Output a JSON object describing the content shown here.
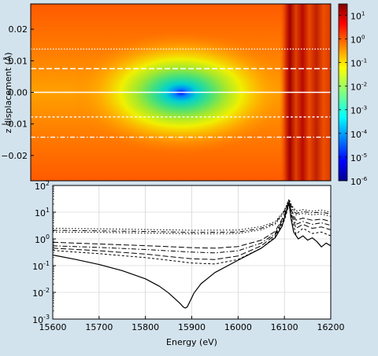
{
  "chart_data": [
    {
      "type": "heatmap",
      "ylabel": "z displacement (Å)",
      "ylim": [
        -0.028,
        0.028
      ],
      "y_ticks": [
        "0.02",
        "0.01",
        "0.00",
        "−0.01",
        "−0.02"
      ],
      "y_tick_values": [
        0.02,
        0.01,
        0.0,
        -0.01,
        -0.02
      ],
      "x_range_eV": [
        15600,
        16200
      ],
      "minimum_location": {
        "energy_eV": 15886,
        "z": 0.0
      },
      "edge_band_eV": [
        16100,
        16125
      ],
      "colorbar": {
        "scale": "log",
        "range": [
          1e-06,
          30
        ],
        "ticks": [
          {
            "mant": "10",
            "exp": "1",
            "value": 10
          },
          {
            "mant": "10",
            "exp": "0",
            "value": 1
          },
          {
            "mant": "10",
            "exp": "-1",
            "value": 0.1
          },
          {
            "mant": "10",
            "exp": "-2",
            "value": 0.01
          },
          {
            "mant": "10",
            "exp": "-3",
            "value": 0.001
          },
          {
            "mant": "10",
            "exp": "-4",
            "value": 0.0001
          },
          {
            "mant": "10",
            "exp": "-5",
            "value": 1e-05
          },
          {
            "mant": "10",
            "exp": "-6",
            "value": 1e-06
          }
        ]
      },
      "slice_lines": [
        {
          "z": 0.0137,
          "dash": "dotted"
        },
        {
          "z": 0.0075,
          "dash": "long-dash"
        },
        {
          "z": 0.0,
          "dash": "solid"
        },
        {
          "z": -0.0078,
          "dash": "short-dash"
        },
        {
          "z": -0.0142,
          "dash": "dash-dot"
        }
      ]
    },
    {
      "type": "line",
      "xlabel": "Energy (eV)",
      "ylabel": "",
      "xlim": [
        15600,
        16200
      ],
      "ylim_log10": [
        -3,
        2
      ],
      "yscale": "log",
      "grid": true,
      "x_ticks": [
        "15600",
        "15700",
        "15800",
        "15900",
        "16000",
        "16100",
        "16200"
      ],
      "y_ticks": [
        {
          "mant": "10",
          "exp": "2"
        },
        {
          "mant": "10",
          "exp": "1"
        },
        {
          "mant": "10",
          "exp": "0"
        },
        {
          "mant": "10",
          "exp": "-1"
        },
        {
          "mant": "10",
          "exp": "-2"
        },
        {
          "mant": "10",
          "exp": "-3"
        }
      ],
      "series": [
        {
          "dash": "solid",
          "x": [
            15600,
            15650,
            15700,
            15750,
            15800,
            15830,
            15850,
            15865,
            15875,
            15882,
            15886,
            15890,
            15896,
            15905,
            15920,
            15950,
            16000,
            16050,
            16080,
            16095,
            16105,
            16110,
            16114,
            16120,
            16130,
            16140,
            16150,
            16160,
            16170,
            16180,
            16190,
            16200
          ],
          "y": [
            0.25,
            0.17,
            0.11,
            0.065,
            0.032,
            0.017,
            0.0095,
            0.0055,
            0.0038,
            0.0028,
            0.0026,
            0.0028,
            0.0045,
            0.0095,
            0.021,
            0.055,
            0.16,
            0.45,
            1.1,
            3.0,
            12,
            22,
            6,
            1.8,
            1.0,
            1.3,
            0.9,
            1.1,
            0.8,
            0.5,
            0.7,
            0.55
          ]
        },
        {
          "dash": "short-dash",
          "x": [
            15600,
            15700,
            15800,
            15850,
            15900,
            15950,
            16000,
            16050,
            16080,
            16100,
            16110,
            16115,
            16125,
            16140,
            16160,
            16180,
            16200
          ],
          "y": [
            0.37,
            0.28,
            0.2,
            0.16,
            0.125,
            0.115,
            0.17,
            0.45,
            1.2,
            5,
            20,
            6,
            1.5,
            2.5,
            1.6,
            1.8,
            1.3
          ]
        },
        {
          "dash": "long-dash",
          "x": [
            15600,
            15700,
            15800,
            15850,
            15900,
            15950,
            16000,
            16050,
            16080,
            16100,
            16110,
            16115,
            16125,
            16140,
            16160,
            16180,
            16200
          ],
          "y": [
            0.45,
            0.36,
            0.27,
            0.22,
            0.18,
            0.17,
            0.23,
            0.55,
            1.4,
            6,
            22,
            8,
            2.5,
            3.5,
            2.5,
            2.8,
            2.2
          ]
        },
        {
          "dash": "dash-dot",
          "x": [
            15600,
            15700,
            15800,
            15900,
            15950,
            16000,
            16050,
            16080,
            16100,
            16110,
            16115,
            16125,
            16140,
            16160,
            16180,
            16200
          ],
          "y": [
            0.55,
            0.48,
            0.4,
            0.32,
            0.3,
            0.36,
            0.7,
            1.6,
            7,
            24,
            10,
            3.5,
            4.5,
            3.5,
            4,
            3.2
          ]
        },
        {
          "dash": "long-dash",
          "x": [
            15600,
            15700,
            15800,
            15900,
            15950,
            16000,
            16050,
            16080,
            16100,
            16110,
            16115,
            16125,
            16140,
            16160,
            16180,
            16200
          ],
          "y": [
            0.75,
            0.65,
            0.56,
            0.47,
            0.45,
            0.52,
            0.9,
            1.9,
            8,
            26,
            12,
            5,
            6,
            5,
            5.5,
            4.5
          ]
        },
        {
          "dash": "dotted",
          "x": [
            15600,
            15700,
            15800,
            15900,
            16000,
            16050,
            16080,
            16100,
            16110,
            16115,
            16125,
            16140,
            16160,
            16180,
            16200
          ],
          "y": [
            1.8,
            1.75,
            1.65,
            1.55,
            1.6,
            2.2,
            3.5,
            10,
            28,
            15,
            8,
            9,
            8,
            8.5,
            7
          ]
        },
        {
          "dash": "dash-dot",
          "x": [
            15600,
            15700,
            15800,
            15900,
            16000,
            16050,
            16080,
            16100,
            16110,
            16115,
            16125,
            16140,
            16160,
            16180,
            16200
          ],
          "y": [
            2.1,
            2.0,
            1.9,
            1.75,
            1.8,
            2.5,
            3.9,
            11,
            30,
            17,
            9,
            10.5,
            9.5,
            10,
            8.5
          ]
        },
        {
          "dash": "dotted",
          "x": [
            15600,
            15700,
            15800,
            15900,
            16000,
            16050,
            16080,
            16100,
            16110,
            16115,
            16125,
            16140,
            16160,
            16180,
            16200
          ],
          "y": [
            2.5,
            2.4,
            2.25,
            2.1,
            2.15,
            2.9,
            4.4,
            12,
            31,
            19,
            11,
            12.5,
            11,
            12,
            10
          ]
        }
      ]
    }
  ]
}
